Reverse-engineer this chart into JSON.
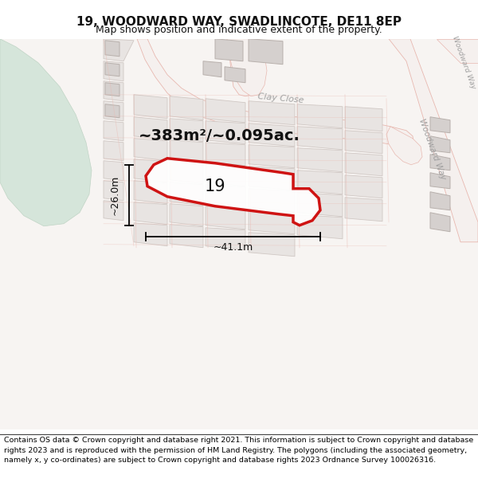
{
  "title": "19, WOODWARD WAY, SWADLINCOTE, DE11 8EP",
  "subtitle": "Map shows position and indicative extent of the property.",
  "footer": "Contains OS data © Crown copyright and database right 2021. This information is subject to Crown copyright and database rights 2023 and is reproduced with the permission of HM Land Registry. The polygons (including the associated geometry, namely x, y co-ordinates) are subject to Crown copyright and database rights 2023 Ordnance Survey 100026316.",
  "bg_color": "#f7f4f2",
  "green_color": "#d5e5da",
  "green_edge_color": "#c0d4c5",
  "road_fill_color": "#f5f0ee",
  "road_edge_color": "#e8b8b0",
  "parcel_fill_color": "#e8e4e2",
  "parcel_edge_color": "#d0c8c4",
  "building_fill_color": "#d5d0ce",
  "building_edge_color": "#b8b0ac",
  "plot_fill_color": "#ffffff",
  "plot_edge_color": "#cc0000",
  "area_text": "~383m²/~0.095ac.",
  "number_text": "19",
  "dim_width": "~41.1m",
  "dim_height": "~26.0m",
  "street_clay": "Clay Close",
  "street_wood_upper": "Woodward Way",
  "street_wood_lower": "Woodward Way",
  "title_fontsize": 11,
  "subtitle_fontsize": 9,
  "footer_fontsize": 6.8,
  "area_fontsize": 14,
  "number_fontsize": 15,
  "street_fontsize": 8,
  "dim_fontsize": 9,
  "figsize": [
    6.0,
    6.25
  ],
  "dpi": 100
}
